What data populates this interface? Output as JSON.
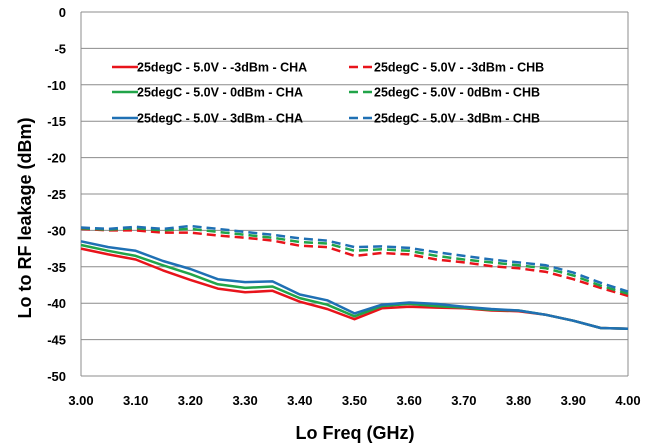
{
  "chart_data": {
    "type": "line",
    "title": "",
    "xlabel": "Lo Freq (GHz)",
    "ylabel": "Lo to RF leakage (dBm)",
    "xlim": [
      3.0,
      4.0
    ],
    "ylim": [
      -50,
      0
    ],
    "grid": "horizontal",
    "legend_placement": "top",
    "x_ticks": [
      "3.00",
      "3.10",
      "3.20",
      "3.30",
      "3.40",
      "3.50",
      "3.60",
      "3.70",
      "3.80",
      "3.90",
      "4.00"
    ],
    "y_ticks": [
      "0",
      "-5",
      "-10",
      "-15",
      "-20",
      "-25",
      "-30",
      "-35",
      "-40",
      "-45",
      "-50"
    ],
    "x": [
      3.0,
      3.05,
      3.1,
      3.15,
      3.2,
      3.25,
      3.3,
      3.35,
      3.4,
      3.45,
      3.5,
      3.55,
      3.6,
      3.65,
      3.7,
      3.75,
      3.8,
      3.85,
      3.9,
      3.95,
      4.0
    ],
    "series": [
      {
        "name": "25degC - 5.0V - -3dBm - CHA",
        "color": "#e8141b",
        "dash": "solid",
        "values": [
          -32.5,
          -33.3,
          -34.0,
          -35.5,
          -36.8,
          -38.0,
          -38.5,
          -38.3,
          -39.8,
          -40.8,
          -42.2,
          -40.7,
          -40.5,
          -40.6,
          -40.7,
          -41.0,
          -41.1,
          -41.6,
          -42.4,
          -43.4,
          -43.5
        ]
      },
      {
        "name": "25degC - 5.0V - 0dBm - CHA",
        "color": "#21a449",
        "dash": "solid",
        "values": [
          -32.0,
          -32.8,
          -33.5,
          -34.8,
          -36.0,
          -37.4,
          -37.9,
          -37.7,
          -39.3,
          -40.2,
          -41.8,
          -40.4,
          -40.1,
          -40.4,
          -40.6,
          -40.9,
          -41.0,
          -41.6,
          -42.4,
          -43.4,
          -43.5
        ]
      },
      {
        "name": "25degC - 5.0V - 3dBm - CHA",
        "color": "#1f70b4",
        "dash": "solid",
        "values": [
          -31.5,
          -32.3,
          -32.8,
          -34.2,
          -35.3,
          -36.7,
          -37.1,
          -37.0,
          -38.8,
          -39.6,
          -41.4,
          -40.2,
          -39.9,
          -40.1,
          -40.5,
          -40.8,
          -41.0,
          -41.6,
          -42.4,
          -43.4,
          -43.5
        ]
      },
      {
        "name": "25degC - 5.0V - -3dBm - CHB",
        "color": "#e8141b",
        "dash": "dashed",
        "values": [
          -29.8,
          -30.0,
          -30.0,
          -30.3,
          -30.3,
          -30.7,
          -31.0,
          -31.4,
          -32.1,
          -32.3,
          -33.5,
          -33.1,
          -33.3,
          -34.0,
          -34.4,
          -34.9,
          -35.2,
          -35.7,
          -36.7,
          -37.9,
          -39.0
        ]
      },
      {
        "name": "25degC - 5.0V - 0dBm - CHB",
        "color": "#21a449",
        "dash": "dashed",
        "values": [
          -29.7,
          -29.9,
          -29.7,
          -30.0,
          -29.8,
          -30.2,
          -30.6,
          -31.0,
          -31.6,
          -31.8,
          -32.8,
          -32.6,
          -32.8,
          -33.5,
          -34.0,
          -34.4,
          -34.8,
          -35.2,
          -36.2,
          -37.6,
          -38.7
        ]
      },
      {
        "name": "25degC - 5.0V - 3dBm - CHB",
        "color": "#1f70b4",
        "dash": "dashed",
        "values": [
          -29.6,
          -29.8,
          -29.5,
          -29.8,
          -29.4,
          -29.8,
          -30.2,
          -30.6,
          -31.1,
          -31.4,
          -32.3,
          -32.2,
          -32.4,
          -33.0,
          -33.5,
          -34.0,
          -34.4,
          -34.8,
          -35.8,
          -37.2,
          -38.4
        ]
      }
    ]
  }
}
